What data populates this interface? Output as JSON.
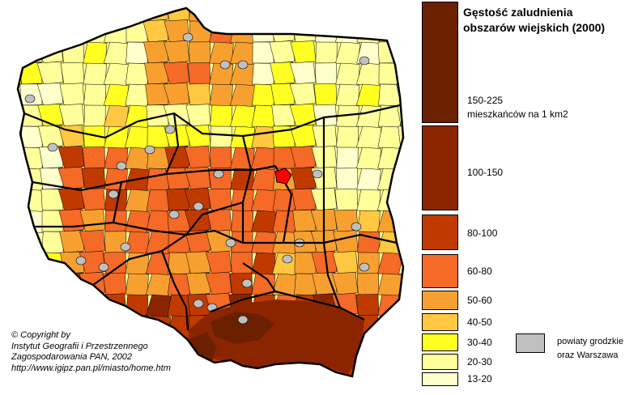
{
  "legend": {
    "title": "Gęstość zaludnienia\nobszarów wiejskich (2000)",
    "classes": [
      {
        "label": "150-225\nmieszkańców na 1 km2",
        "color": "#6b2000"
      },
      {
        "label": "100-150",
        "color": "#8b2500"
      },
      {
        "label": "80-100",
        "color": "#c03a00"
      },
      {
        "label": "60-80",
        "color": "#f46a26"
      },
      {
        "label": "50-60",
        "color": "#f7a030"
      },
      {
        "label": "40-50",
        "color": "#ffc840"
      },
      {
        "label": "30-40",
        "color": "#ffff22"
      },
      {
        "label": "20-30",
        "color": "#ffff99"
      },
      {
        "label": "13-20",
        "color": "#ffffcc"
      }
    ],
    "city_note": {
      "label": "powiaty grodzkie\noraz Warszawa",
      "color": "#c0c0c0"
    }
  },
  "copyright": "© Copyright by\nInstytut Geografii i Przestrzennego\nZagospodarowania PAN, 2002\nhttp://www.igipz.pan.pl/miasto/home.htm",
  "highlight_color": "#ff0000"
}
